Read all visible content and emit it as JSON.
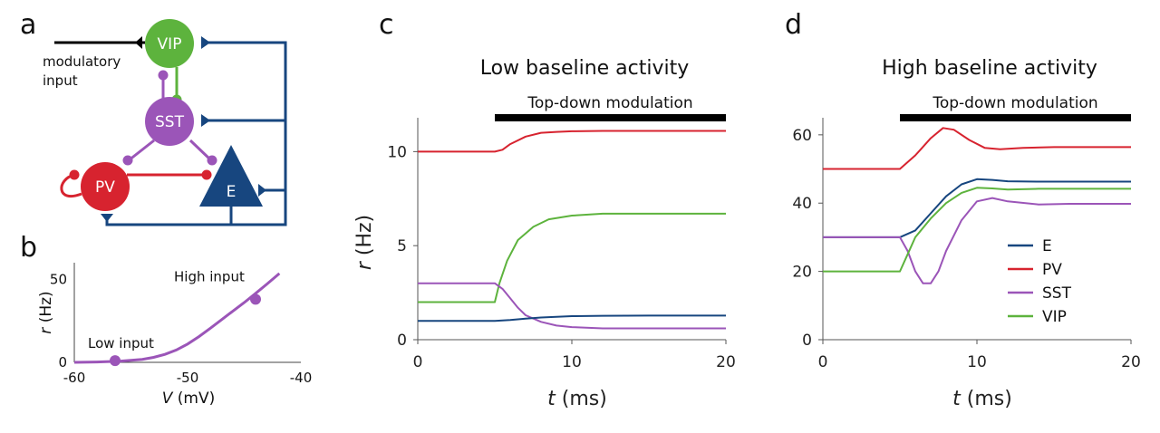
{
  "panels": {
    "a": "a",
    "b": "b",
    "c": "c",
    "d": "d"
  },
  "colors": {
    "E": "#17467f",
    "PV": "#d7232f",
    "SST": "#9b55b8",
    "VIP": "#5db33d",
    "black": "#000000"
  },
  "diagram": {
    "nodes": {
      "VIP": "VIP",
      "SST": "SST",
      "PV": "PV",
      "E": "E"
    },
    "input_label_line1": "modulatory",
    "input_label_line2": "input"
  },
  "chart_data": [
    {
      "id": "b",
      "type": "line",
      "xlabel_var": "V",
      "xlabel_unit": " (mV)",
      "ylabel_var": "r",
      "ylabel_unit": " (Hz)",
      "xlim": [
        -60,
        -40
      ],
      "ylim": [
        0,
        60
      ],
      "xticks": [
        "-60",
        "-50",
        "-40"
      ],
      "yticks": [
        "0",
        "50"
      ],
      "curve_x": [
        -60,
        -58,
        -56,
        -54,
        -53,
        -52,
        -51,
        -50,
        -49,
        -48,
        -47,
        -46,
        -45,
        -44,
        -43,
        -42,
        -41.9
      ],
      "curve_y": [
        0,
        0.2,
        0.7,
        1.8,
        3,
        4.8,
        7.4,
        11,
        15.5,
        20.5,
        25.7,
        30.9,
        36,
        41.5,
        47.1,
        52.9,
        53.5
      ],
      "points": [
        {
          "label": "Low input",
          "x": -56.4,
          "y": 1
        },
        {
          "label": "High input",
          "x": -44,
          "y": 38
        }
      ]
    },
    {
      "id": "c",
      "type": "line",
      "title": "Low baseline activity",
      "bar_label": "Top-down modulation",
      "bar_range": [
        5,
        20
      ],
      "xlabel_var": "t",
      "xlabel_unit": " (ms)",
      "ylabel_var": "r",
      "ylabel_unit": " (Hz)",
      "xlim": [
        0,
        20
      ],
      "ylim": [
        0,
        11.8
      ],
      "xticks": [
        0,
        10,
        20
      ],
      "yticks": [
        0,
        5,
        10
      ],
      "series": [
        {
          "key": "PV",
          "x": [
            0,
            5,
            5.5,
            6,
            7,
            8,
            9,
            10,
            12,
            15,
            20
          ],
          "y": [
            10,
            10,
            10.1,
            10.4,
            10.8,
            11.0,
            11.05,
            11.08,
            11.1,
            11.1,
            11.1
          ]
        },
        {
          "key": "VIP",
          "x": [
            0,
            5,
            5.3,
            5.8,
            6.5,
            7.5,
            8.5,
            10,
            12,
            15,
            20
          ],
          "y": [
            2,
            2,
            3.0,
            4.2,
            5.3,
            6.0,
            6.4,
            6.6,
            6.7,
            6.7,
            6.7
          ]
        },
        {
          "key": "SST",
          "x": [
            0,
            5,
            5.5,
            6,
            6.5,
            7,
            8,
            9,
            10,
            12,
            15,
            20
          ],
          "y": [
            3,
            3,
            2.7,
            2.2,
            1.7,
            1.3,
            0.95,
            0.75,
            0.67,
            0.6,
            0.6,
            0.6
          ]
        },
        {
          "key": "E",
          "x": [
            0,
            5,
            6,
            7,
            8,
            9,
            10,
            12,
            15,
            20
          ],
          "y": [
            1,
            1,
            1.05,
            1.12,
            1.18,
            1.22,
            1.25,
            1.27,
            1.28,
            1.28
          ]
        }
      ]
    },
    {
      "id": "d",
      "type": "line",
      "title": "High baseline activity",
      "bar_label": "Top-down modulation",
      "bar_range": [
        5,
        20
      ],
      "xlabel_var": "t",
      "xlabel_unit": " (ms)",
      "xlim": [
        0,
        20
      ],
      "ylim": [
        0,
        65
      ],
      "xticks": [
        0,
        10,
        20
      ],
      "yticks": [
        0,
        20,
        40,
        60
      ],
      "series": [
        {
          "key": "E",
          "name": "E",
          "x": [
            0,
            5,
            6,
            7,
            8,
            9,
            10,
            11,
            12,
            14,
            16,
            20
          ],
          "y": [
            30,
            30,
            32,
            37,
            42,
            45.5,
            47,
            46.8,
            46.4,
            46.3,
            46.3,
            46.3
          ]
        },
        {
          "key": "PV",
          "name": "PV",
          "x": [
            0,
            5,
            6,
            7,
            7.8,
            8.5,
            9.5,
            10.5,
            11.5,
            13,
            15,
            20
          ],
          "y": [
            50,
            50,
            54,
            59,
            62,
            61.5,
            58.5,
            56.2,
            55.8,
            56.2,
            56.4,
            56.4
          ]
        },
        {
          "key": "SST",
          "name": "SST",
          "x": [
            0,
            5,
            5.5,
            6,
            6.5,
            7,
            7.5,
            8,
            9,
            10,
            11,
            12,
            14,
            16,
            20
          ],
          "y": [
            30,
            30,
            26,
            20,
            16.5,
            16.5,
            20,
            26,
            35,
            40.5,
            41.5,
            40.5,
            39.6,
            39.8,
            39.8
          ]
        },
        {
          "key": "VIP",
          "name": "VIP",
          "x": [
            0,
            5,
            5.5,
            6,
            7,
            8,
            9,
            10,
            11,
            12,
            14,
            20
          ],
          "y": [
            20,
            20,
            25,
            30,
            35.5,
            40,
            43,
            44.5,
            44.3,
            44.0,
            44.2,
            44.2
          ]
        }
      ]
    }
  ]
}
